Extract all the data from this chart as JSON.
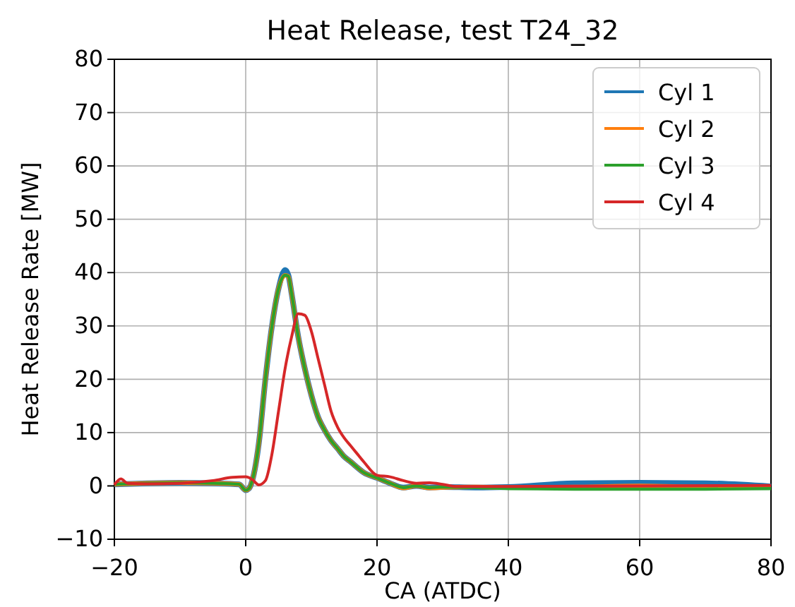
{
  "chart_data": {
    "type": "line",
    "title": "Heat Release, test T24_32",
    "xlabel": "CA (ATDC)",
    "ylabel": "Heat Release Rate [MW]",
    "xlim": [
      -20,
      80
    ],
    "xticks": [
      -20,
      0,
      20,
      40,
      60,
      80
    ],
    "ylim": [
      -10,
      80
    ],
    "yticks": [
      -10,
      0,
      10,
      20,
      30,
      40,
      50,
      60,
      70,
      80
    ],
    "grid": true,
    "legend": "top right",
    "line_style": "solid",
    "x": [
      -20,
      -15,
      -10,
      -5,
      -1,
      0,
      0.5,
      1,
      2,
      3,
      4,
      5,
      6,
      6.5,
      7,
      8,
      9,
      10,
      11,
      12,
      13,
      14,
      15,
      16,
      18,
      20,
      22,
      24,
      26,
      28,
      30,
      35,
      40,
      50,
      60,
      70,
      80
    ],
    "series": [
      {
        "name": "Cyl 1",
        "color": "#1f77b4",
        "values": [
          0.3,
          0.5,
          0.6,
          0.5,
          0.3,
          -0.8,
          -0.5,
          1,
          8,
          20,
          30,
          37,
          40.5,
          39.5,
          36,
          28,
          22,
          17,
          13,
          10.5,
          8.5,
          7,
          5.5,
          4.5,
          2.5,
          1.5,
          0.5,
          -0.3,
          0,
          -0.3,
          -0.2,
          -0.3,
          -0.2,
          0.5,
          0.6,
          0.5,
          -0.1
        ]
      },
      {
        "name": "Cyl 2",
        "color": "#ff7f0e",
        "values": [
          0.3,
          0.5,
          0.6,
          0.5,
          0.3,
          -0.8,
          -0.5,
          1,
          8,
          20,
          30,
          37,
          39.5,
          39.3,
          36,
          28,
          22,
          17,
          13,
          10.5,
          8.5,
          7,
          5.5,
          4.5,
          2.5,
          1.5,
          0.5,
          -0.4,
          0,
          -0.4,
          -0.3,
          -0.2,
          -0.3,
          -0.2,
          0,
          -0.2,
          -0.1
        ]
      },
      {
        "name": "Cyl 3",
        "color": "#2ca02c",
        "values": [
          0.3,
          0.5,
          0.6,
          0.5,
          0.3,
          -0.8,
          -0.5,
          1,
          8,
          20,
          30,
          37,
          39.5,
          39.3,
          36,
          28,
          22,
          17,
          13,
          10.5,
          8.5,
          7,
          5.5,
          4.5,
          2.5,
          1.5,
          0.5,
          -0.3,
          0,
          -0.3,
          -0.2,
          -0.3,
          -0.5,
          -0.6,
          -0.6,
          -0.6,
          -0.5
        ]
      },
      {
        "name": "Cyl 4",
        "color": "#d62728",
        "x": [
          -20,
          -19,
          -18,
          -15,
          -10,
          -5,
          -2,
          0,
          1,
          2,
          3,
          4,
          5,
          6,
          7,
          8,
          9,
          10,
          11,
          12,
          13,
          14,
          15,
          16,
          17,
          18,
          20,
          22,
          24,
          26,
          28,
          30,
          32,
          40,
          60,
          80
        ],
        "values": [
          0.2,
          1.3,
          0.5,
          0.4,
          0.5,
          1,
          1.6,
          1.7,
          1.2,
          0.2,
          1,
          6,
          14,
          22,
          28,
          32.3,
          32,
          29,
          24,
          19,
          14,
          11,
          9,
          7.5,
          6,
          4.5,
          2,
          1.7,
          1,
          0.5,
          0.6,
          0.3,
          -0.1,
          -0.1,
          0,
          0.1
        ]
      }
    ]
  }
}
